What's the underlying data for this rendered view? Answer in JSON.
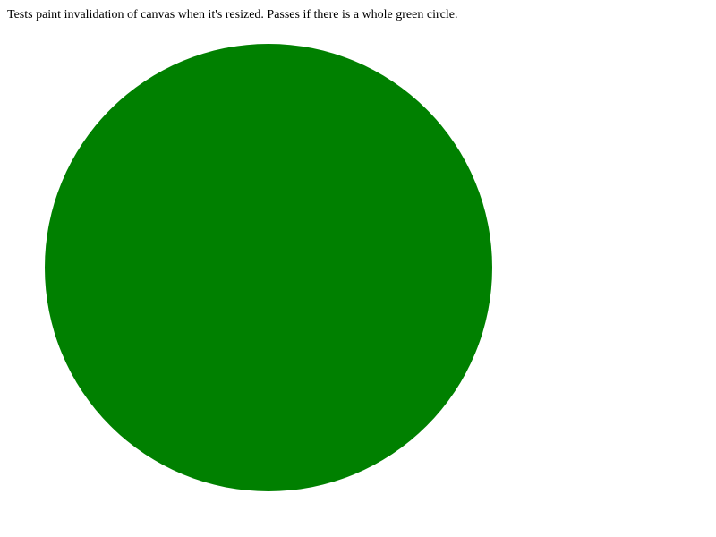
{
  "page": {
    "description": "Tests paint invalidation of canvas when it's resized. Passes if there is a whole green circle."
  },
  "canvas": {
    "circle_color": "#008000"
  }
}
